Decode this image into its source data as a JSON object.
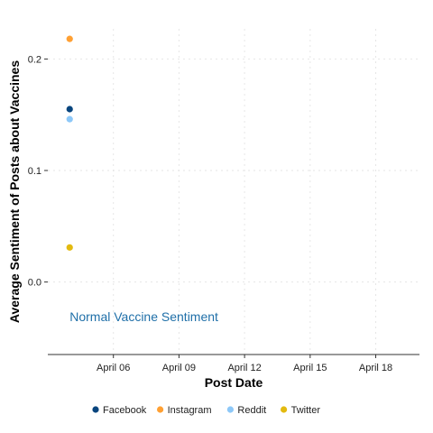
{
  "chart_data": {
    "type": "scatter",
    "title": "",
    "xlabel": "Post Date",
    "ylabel": "Average Sentiment of Posts about Vaccines",
    "x_type": "date",
    "year": 2020,
    "xlim": [
      "2020-04-03",
      "2020-04-20"
    ],
    "ylim": [
      -0.065,
      0.227
    ],
    "x_ticks": [
      {
        "date": "2020-04-06",
        "label": "April 06"
      },
      {
        "date": "2020-04-09",
        "label": "April 09"
      },
      {
        "date": "2020-04-12",
        "label": "April 12"
      },
      {
        "date": "2020-04-15",
        "label": "April 15"
      },
      {
        "date": "2020-04-18",
        "label": "April 18"
      }
    ],
    "y_ticks": [
      {
        "value": 0.0,
        "label": "0.0"
      },
      {
        "value": 0.1,
        "label": "0.1"
      },
      {
        "value": 0.2,
        "label": "0.2"
      }
    ],
    "grid": true,
    "legend_position": "bottom",
    "series": [
      {
        "name": "Facebook",
        "color": "#08457E",
        "points": [
          {
            "x": "2020-04-04",
            "y": 0.155
          }
        ]
      },
      {
        "name": "Instagram",
        "color": "#FFA033",
        "points": [
          {
            "x": "2020-04-04",
            "y": 0.218
          }
        ]
      },
      {
        "name": "Reddit",
        "color": "#8DC8F8",
        "points": [
          {
            "x": "2020-04-04",
            "y": 0.146
          }
        ]
      },
      {
        "name": "Twitter",
        "color": "#E3BA0F",
        "points": [
          {
            "x": "2020-04-04",
            "y": 0.031
          }
        ]
      }
    ],
    "annotations": [
      {
        "text": "Normal Vaccine Sentiment",
        "x": "2020-04-04",
        "y": -0.031,
        "color": "#1F6FA8"
      }
    ]
  }
}
